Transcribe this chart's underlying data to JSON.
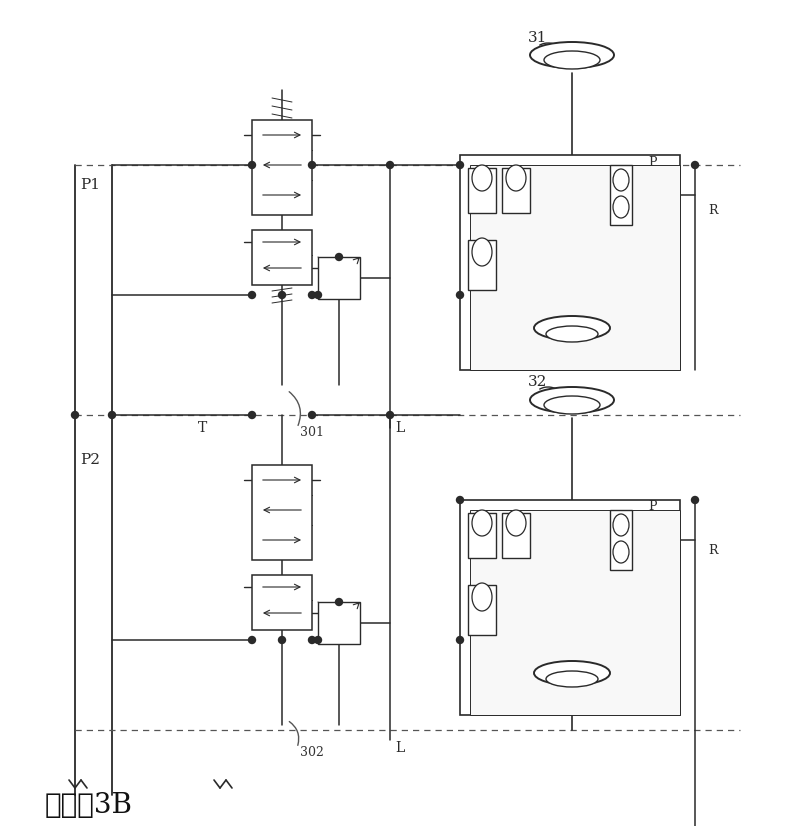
{
  "bg_color": "#ffffff",
  "lc": "#2a2a2a",
  "dc": "#555555",
  "title": "下接图3B",
  "lbl_31": "31",
  "lbl_32": "32",
  "lbl_301": "301",
  "lbl_302": "302",
  "lbl_P1": "P1",
  "lbl_P2": "P2",
  "lbl_T": "T",
  "lbl_L": "L",
  "lbl_P": "P",
  "lbl_R": "R",
  "fig_w": 8.0,
  "fig_h": 8.26,
  "dpi": 100
}
